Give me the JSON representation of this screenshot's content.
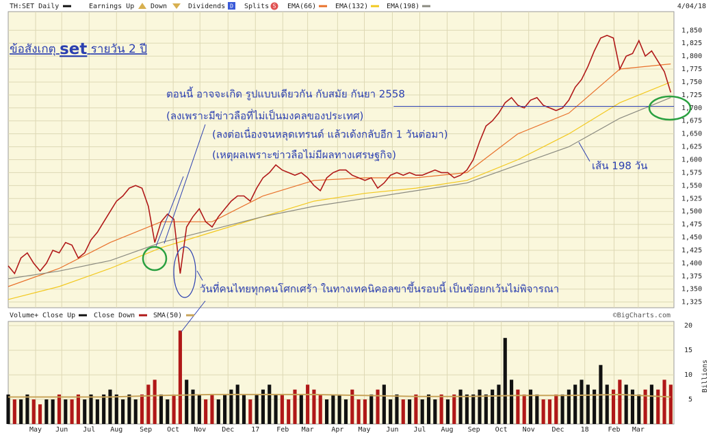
{
  "chart_data": {
    "type": "stock",
    "title": [
      "ข้อสังเกตุ",
      "set",
      "รายวัน 2 ปี"
    ],
    "date": "4/04/18",
    "xlim": [
      0,
      104.5
    ],
    "xticks": [
      {
        "value": 4.3,
        "label": "May"
      },
      {
        "value": 8.4,
        "label": "Jun"
      },
      {
        "value": 12.7,
        "label": "Jul"
      },
      {
        "value": 17.0,
        "label": "Aug"
      },
      {
        "value": 21.6,
        "label": "Sep"
      },
      {
        "value": 25.9,
        "label": "Oct"
      },
      {
        "value": 30.1,
        "label": "Nov"
      },
      {
        "value": 34.5,
        "label": "Dec"
      },
      {
        "value": 38.8,
        "label": "17"
      },
      {
        "value": 43.1,
        "label": "Feb"
      },
      {
        "value": 47.0,
        "label": "Mar"
      },
      {
        "value": 51.7,
        "label": "Apr"
      },
      {
        "value": 55.9,
        "label": "May"
      },
      {
        "value": 60.3,
        "label": "Jun"
      },
      {
        "value": 64.6,
        "label": "Jul"
      },
      {
        "value": 68.9,
        "label": "Aug"
      },
      {
        "value": 73.1,
        "label": "Sep"
      },
      {
        "value": 77.4,
        "label": "Oct"
      },
      {
        "value": 81.7,
        "label": "Nov"
      },
      {
        "value": 86.3,
        "label": "Dec"
      },
      {
        "value": 90.5,
        "label": "18"
      },
      {
        "value": 95.1,
        "label": "Feb"
      },
      {
        "value": 98.9,
        "label": "Mar"
      }
    ],
    "x": [
      0,
      1,
      2,
      3,
      4,
      5,
      6,
      7,
      8,
      9,
      10,
      11,
      12,
      13,
      14,
      15,
      16,
      17,
      18,
      19,
      20,
      21,
      22,
      23,
      24,
      25,
      26,
      27,
      28,
      29,
      30,
      31,
      32,
      33,
      34,
      35,
      36,
      37,
      38,
      39,
      40,
      41,
      42,
      43,
      44,
      45,
      46,
      47,
      48,
      49,
      50,
      51,
      52,
      53,
      54,
      55,
      56,
      57,
      58,
      59,
      60,
      61,
      62,
      63,
      64,
      65,
      66,
      67,
      68,
      69,
      70,
      71,
      72,
      73,
      74,
      75,
      76,
      77,
      78,
      79,
      80,
      81,
      82,
      83,
      84,
      85,
      86,
      87,
      88,
      89,
      90,
      91,
      92,
      93,
      94,
      95,
      96,
      97,
      98,
      99,
      100,
      101,
      102,
      103,
      104
    ],
    "price": {
      "ylim": [
        1314,
        1886
      ],
      "yticks": [
        {
          "value": 1325,
          "label": "1,325"
        },
        {
          "value": 1350,
          "label": "1,350"
        },
        {
          "value": 1375,
          "label": "1,375"
        },
        {
          "value": 1400,
          "label": "1,400"
        },
        {
          "value": 1425,
          "label": "1,425"
        },
        {
          "value": 1450,
          "label": "1,450"
        },
        {
          "value": 1475,
          "label": "1,475"
        },
        {
          "value": 1500,
          "label": "1,500"
        },
        {
          "value": 1525,
          "label": "1,525"
        },
        {
          "value": 1550,
          "label": "1,550"
        },
        {
          "value": 1575,
          "label": "1,575"
        },
        {
          "value": 1600,
          "label": "1,600"
        },
        {
          "value": 1625,
          "label": "1,625"
        },
        {
          "value": 1650,
          "label": "1,650"
        },
        {
          "value": 1675,
          "label": "1,675"
        },
        {
          "value": 1700,
          "label": "1,700"
        },
        {
          "value": 1725,
          "label": "1,725"
        },
        {
          "value": 1750,
          "label": "1,750"
        },
        {
          "value": 1775,
          "label": "1,775"
        },
        {
          "value": 1800,
          "label": "1,800"
        },
        {
          "value": 1825,
          "label": "1,825"
        },
        {
          "value": 1850,
          "label": "1,850"
        }
      ],
      "series": [
        {
          "name": "TH:SET Daily",
          "color": "#b01818",
          "values": [
            1395,
            1380,
            1410,
            1420,
            1400,
            1385,
            1400,
            1425,
            1420,
            1440,
            1435,
            1410,
            1420,
            1445,
            1460,
            1480,
            1500,
            1520,
            1530,
            1545,
            1550,
            1545,
            1510,
            1440,
            1480,
            1495,
            1485,
            1380,
            1470,
            1490,
            1505,
            1480,
            1470,
            1490,
            1505,
            1520,
            1530,
            1530,
            1520,
            1545,
            1565,
            1575,
            1590,
            1580,
            1575,
            1570,
            1575,
            1565,
            1550,
            1540,
            1565,
            1575,
            1580,
            1580,
            1570,
            1565,
            1560,
            1565,
            1545,
            1555,
            1570,
            1575,
            1570,
            1575,
            1570,
            1570,
            1575,
            1580,
            1575,
            1575,
            1565,
            1570,
            1580,
            1600,
            1635,
            1665,
            1675,
            1690,
            1710,
            1720,
            1705,
            1700,
            1715,
            1720,
            1705,
            1700,
            1695,
            1700,
            1715,
            1740,
            1755,
            1780,
            1810,
            1835,
            1840,
            1835,
            1775,
            1800,
            1805,
            1830,
            1800,
            1810,
            1790,
            1770,
            1730
          ]
        }
      ],
      "overlays": [
        {
          "name": "EMA(66)",
          "color": "#e8702a",
          "x": [
            0,
            8,
            16,
            24,
            32,
            40,
            48,
            56,
            64,
            72,
            80,
            88,
            96,
            104
          ],
          "values": [
            1355,
            1390,
            1440,
            1480,
            1480,
            1530,
            1560,
            1565,
            1565,
            1575,
            1650,
            1690,
            1775,
            1785
          ]
        },
        {
          "name": "EMA(132)",
          "color": "#f2c81e",
          "x": [
            0,
            8,
            16,
            24,
            32,
            40,
            48,
            56,
            64,
            72,
            80,
            88,
            96,
            104
          ],
          "values": [
            1330,
            1355,
            1390,
            1430,
            1460,
            1490,
            1520,
            1535,
            1545,
            1560,
            1600,
            1650,
            1710,
            1750
          ]
        },
        {
          "name": "EMA(198)",
          "color": "#8a8a80",
          "x": [
            0,
            8,
            16,
            24,
            32,
            40,
            48,
            56,
            64,
            72,
            80,
            88,
            96,
            104
          ],
          "values": [
            1370,
            1385,
            1405,
            1440,
            1465,
            1490,
            1510,
            1525,
            1540,
            1555,
            1590,
            1625,
            1680,
            1720
          ]
        }
      ],
      "legend_extras": [
        "Earnings Up",
        "Down",
        "Dividends",
        "D",
        "Splits",
        "S"
      ],
      "hline": {
        "value": 1703,
        "color": "#2b3fb0"
      },
      "annotations": [
        "ตอนนี้ อาจจะเกิด รูปแบบเดียวกัน กับสมัย กันยา 2558",
        "(ลงเพราะมีข่าวลือที่ไม่เป็นมงคลของประเทศ)",
        "(ลงต่อเนื่องจนหลุดเทรนด์ แล้วเด้งกลับอีก 1 วันต่อมา)",
        "(เหตุผลเพราะข่าวลือไม่มีผลทางเศรษฐกิจ)",
        "เส้น 198 วัน",
        "วันที่คนไทยทุกคนโศกเศร้า ในทางเทคนิคอลขาขึ้นรอบนี้ เป็นข้อยกเว้นไม่พิจารณา"
      ]
    },
    "volume": {
      "label": "Volume+",
      "up": {
        "name": "Close Up",
        "color": "#111111"
      },
      "down": {
        "name": "Close Down",
        "color": "#b01818"
      },
      "ylim": [
        0,
        20.86
      ],
      "yticks": [
        5,
        10,
        15,
        20
      ],
      "ylabel": "Billions",
      "credit": "©BigCharts.com",
      "values": [
        6,
        5,
        5,
        6,
        5,
        4,
        5,
        5,
        6,
        5,
        5,
        6,
        5,
        6,
        5,
        6,
        7,
        6,
        5,
        6,
        5,
        6,
        8,
        9,
        6,
        5,
        6,
        19,
        9,
        7,
        6,
        5,
        6,
        5,
        6,
        7,
        8,
        6,
        5,
        6,
        7,
        8,
        6,
        6,
        5,
        7,
        6,
        8,
        7,
        6,
        5,
        6,
        6,
        5,
        7,
        5,
        5,
        6,
        7,
        8,
        5,
        6,
        5,
        5,
        6,
        5,
        6,
        5,
        6,
        5,
        6,
        7,
        6,
        6,
        7,
        6,
        7,
        8,
        17.5,
        9,
        7,
        6,
        7,
        6,
        5,
        5,
        6,
        6,
        7,
        8,
        9,
        8,
        7,
        12,
        8,
        7,
        9,
        8,
        7,
        6,
        7,
        8,
        7,
        9,
        8
      ],
      "sma": {
        "name": "SMA(50)",
        "color": "#c8a45a",
        "x": [
          0,
          8,
          16,
          24,
          32,
          40,
          48,
          56,
          64,
          72,
          80,
          88,
          96,
          104
        ],
        "values": [
          5.5,
          5.5,
          5.5,
          5.8,
          6,
          6,
          6,
          5.8,
          5.6,
          5.6,
          5.8,
          5.8,
          6,
          5.5
        ]
      }
    }
  }
}
